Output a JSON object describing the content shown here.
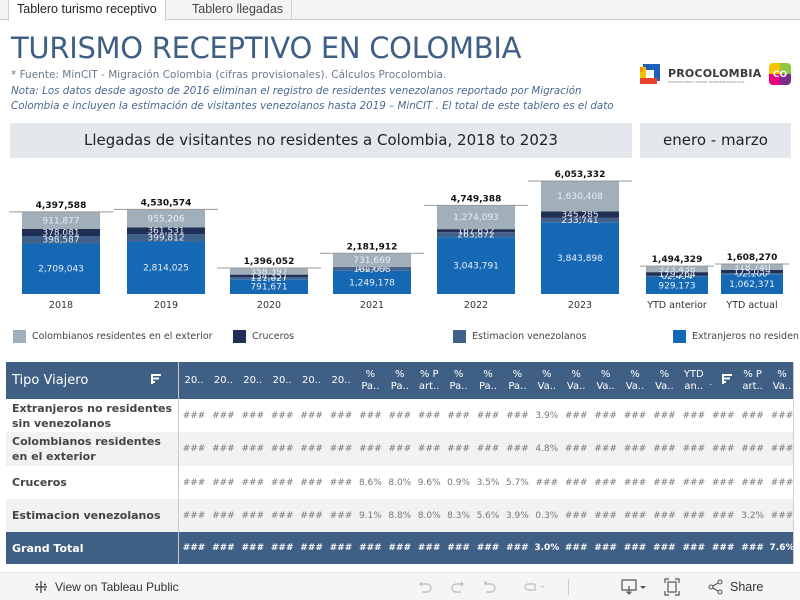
{
  "tabs": [
    {
      "label": "Tablero turismo receptivo",
      "active": true
    },
    {
      "label": "Tablero llegadas",
      "active": false
    }
  ],
  "header": {
    "title": "TURISMO RECEPTIVO EN COLOMBIA",
    "source": "* Fuente: MinCIT - Migración Colombia (cifras provisionales). Cálculos Procolombia.",
    "note": "Nota: Los datos desde agosto de 2016 eliminan el registro de residentes venezolanos reportado por Migración Colombia e incluyen la estimación de visitantes venezolanos hasta 2019 – MinCIT .  El total de este tablero es el dato oficial de turismo receptivo del país."
  },
  "logos": {
    "procolombia": "PROCOLOMBIA",
    "procolombia_tagline": "EXPORTACIONES TURISMO INVERSIÓN MARCA PAÍS",
    "co_badge": "CO"
  },
  "colors": {
    "title": "#3f5f85",
    "colombianos": "#a1afbb",
    "cruceros": "#1f2f55",
    "estimacion": "#41608a",
    "extranjeros": "#1568b4",
    "table_header": "#3f5f85"
  },
  "sections": {
    "annual_title": "Llegadas de visitantes no residentes a Colombia, 2018 to 2023",
    "ytd_title": "enero - marzo"
  },
  "chart_data": {
    "type": "bar",
    "stacked": true,
    "title": "Llegadas de visitantes no residentes a Colombia, 2018 to 2023",
    "xlabel": "",
    "ylabel": "",
    "grid": false,
    "legend_position": "bottom",
    "categories": [
      "2018",
      "2019",
      "2020",
      "2021",
      "2022",
      "2023"
    ],
    "totals": [
      4397588,
      4530574,
      1396052,
      2181912,
      4749388,
      6053332
    ],
    "total_labels": [
      "4,397,588",
      "4,530,574",
      "1,396,052",
      "2,181,912",
      "4,749,388",
      "6,053,332"
    ],
    "series": [
      {
        "name": "Extranjeros no residentes",
        "key": "extranjeros",
        "values": [
          2709043,
          2814025,
          791671,
          1249178,
          3043791,
          3843898
        ],
        "labels": [
          "2,709,043",
          "2,814,025",
          "791,671",
          "1,249,178",
          "3,043,791",
          "3,843,898"
        ]
      },
      {
        "name": "Estimacion venezolanos",
        "key": "estimacion",
        "values": [
          398587,
          399812,
          111627,
          182088,
          263872,
          233741
        ],
        "labels": [
          "398,587",
          "399,812",
          "111,627",
          "182,088",
          "263,872",
          "233,741"
        ]
      },
      {
        "name": "Cruceros",
        "key": "cruceros",
        "values": [
          378081,
          361531,
          134357,
          18977,
          167632,
          345285
        ],
        "labels": [
          "378,081",
          "361,531",
          "134,357",
          "18,977",
          "167,632",
          "345,285"
        ]
      },
      {
        "name": "Colombianos residentes en el exterior",
        "key": "colombianos",
        "values": [
          911877,
          955206,
          358397,
          731669,
          1274093,
          1630408
        ],
        "labels": [
          "911,877",
          "955,206",
          "358,397",
          "731,669",
          "1,274,093",
          "1,630,408"
        ]
      }
    ],
    "ytd": {
      "title": "enero - marzo",
      "categories": [
        "YTD anterior",
        "YTD actual"
      ],
      "totals": [
        1494329,
        1608270
      ],
      "total_labels": [
        "1,494,329",
        "1,608,270"
      ],
      "series": [
        {
          "name": "Extranjeros no residentes",
          "key": "extranjeros",
          "values": [
            929173,
            1062371
          ],
          "labels": [
            "929,173",
            "1,062,371"
          ]
        },
        {
          "name": "Estimacion venezolanos",
          "key": "estimacion",
          "values": [
            62454,
            52100
          ],
          "labels": [
            "62,454",
            "52,100"
          ]
        },
        {
          "name": "Cruceros",
          "key": "cruceros",
          "values": [
            179264,
            175059
          ],
          "labels": [
            "179,264",
            "175,059"
          ]
        },
        {
          "name": "Colombianos residentes en el exterior",
          "key": "colombianos",
          "values": [
            323438,
            318740
          ],
          "labels": [
            "323,438",
            "318,740"
          ]
        }
      ]
    }
  },
  "legend": [
    {
      "label": "Colombianos residentes en el exterior",
      "key": "colombianos"
    },
    {
      "label": "Cruceros",
      "key": "cruceros"
    },
    {
      "label": "Estimacion venezolanos",
      "key": "estimacion"
    },
    {
      "label": "Extranjeros no residen",
      "key": "extranjeros"
    }
  ],
  "table": {
    "row_header": "Tipo Viajero",
    "columns": [
      [
        "20.."
      ],
      [
        "20.."
      ],
      [
        "20.."
      ],
      [
        "20.."
      ],
      [
        "20.."
      ],
      [
        "20.."
      ],
      [
        "%",
        "Pa.."
      ],
      [
        "%",
        "Pa.."
      ],
      [
        "% P",
        "art.."
      ],
      [
        "%",
        "Pa.."
      ],
      [
        "%",
        "Pa.."
      ],
      [
        "%",
        "Pa.."
      ],
      [
        "%",
        "Va.."
      ],
      [
        "%",
        "Va.."
      ],
      [
        "%",
        "Va.."
      ],
      [
        "%",
        "Va.."
      ],
      [
        "%",
        "Va.."
      ],
      [
        "YTD",
        "an.."
      ],
      [
        "."
      ],
      [
        "% P",
        "art.."
      ],
      [
        "%",
        "Va.."
      ]
    ],
    "sorted_column_index": 18,
    "rows": [
      {
        "label": "Extranjeros no residentes sin venezolanos",
        "cells": [
          "###",
          "###",
          "###",
          "###",
          "###",
          "###",
          "###",
          "###",
          "###",
          "###",
          "###",
          "###",
          "3.9%",
          "###",
          "###",
          "###",
          "###",
          "###",
          "###",
          "###",
          "###"
        ]
      },
      {
        "label": "Colombianos residentes en el exterior",
        "cells": [
          "###",
          "###",
          "###",
          "###",
          "###",
          "###",
          "###",
          "###",
          "###",
          "###",
          "###",
          "###",
          "4.8%",
          "###",
          "###",
          "###",
          "###",
          "###",
          "###",
          "###",
          "###"
        ]
      },
      {
        "label": "Cruceros",
        "cells": [
          "###",
          "###",
          "###",
          "###",
          "###",
          "###",
          "8.6%",
          "8.0%",
          "9.6%",
          "0.9%",
          "3.5%",
          "5.7%",
          "###",
          "###",
          "###",
          "###",
          "###",
          "###",
          "###",
          "###",
          "###"
        ]
      },
      {
        "label": "Estimacion venezolanos",
        "cells": [
          "###",
          "###",
          "###",
          "###",
          "###",
          "###",
          "9.1%",
          "8.8%",
          "8.0%",
          "8.3%",
          "5.6%",
          "3.9%",
          "0.3%",
          "###",
          "###",
          "###",
          "###",
          "###",
          "###",
          "3.2%",
          "###"
        ]
      }
    ],
    "total": {
      "label": "Grand Total",
      "cells": [
        "###",
        "###",
        "###",
        "###",
        "###",
        "###",
        "###",
        "###",
        "###",
        "###",
        "###",
        "###",
        "3.0%",
        "###",
        "###",
        "###",
        "###",
        "###",
        "###",
        "###",
        "7.6%"
      ]
    }
  },
  "footer": {
    "view_link": "View on Tableau Public",
    "share": "Share"
  }
}
